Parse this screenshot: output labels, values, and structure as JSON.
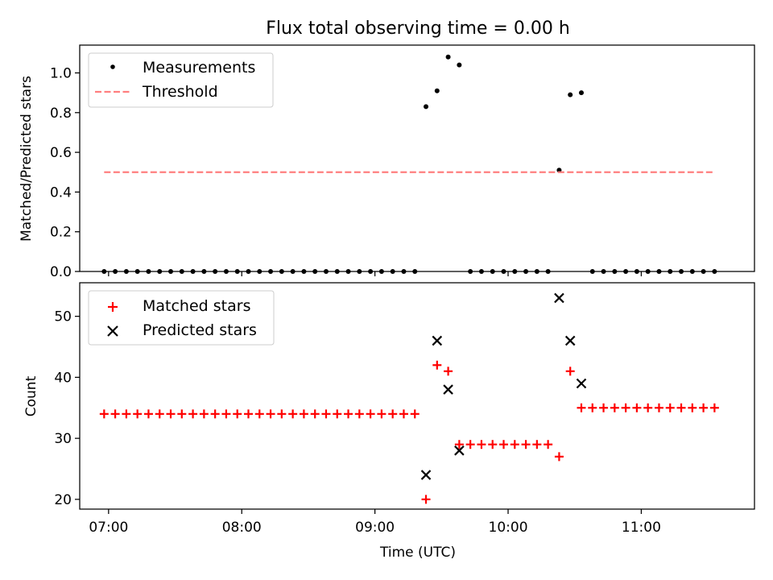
{
  "chart_data": [
    {
      "type": "scatter",
      "title": "Flux total observing time = 0.00 h",
      "xlabel": "",
      "ylabel": "Matched/Predicted stars",
      "xlim": [
        "06:47",
        "11:51"
      ],
      "ylim": [
        0,
        1.14
      ],
      "x_ticks": [
        "07:00",
        "08:00",
        "09:00",
        "10:00",
        "11:00"
      ],
      "y_ticks": [
        "0.0",
        "0.2",
        "0.4",
        "0.6",
        "0.8",
        "1.0"
      ],
      "y_tick_values": [
        0,
        0.2,
        0.4,
        0.6,
        0.8,
        1.0
      ],
      "legend_position": "upper-left",
      "series": [
        {
          "name": "Measurements",
          "marker": "dot",
          "color": "#000000",
          "points": [
            [
              "06:58",
              0
            ],
            [
              "07:03",
              0
            ],
            [
              "07:08",
              0
            ],
            [
              "07:13",
              0
            ],
            [
              "07:18",
              0
            ],
            [
              "07:23",
              0
            ],
            [
              "07:28",
              0
            ],
            [
              "07:33",
              0
            ],
            [
              "07:38",
              0
            ],
            [
              "07:43",
              0
            ],
            [
              "07:48",
              0
            ],
            [
              "07:53",
              0
            ],
            [
              "07:58",
              0
            ],
            [
              "08:03",
              0
            ],
            [
              "08:08",
              0
            ],
            [
              "08:13",
              0
            ],
            [
              "08:18",
              0
            ],
            [
              "08:23",
              0
            ],
            [
              "08:28",
              0
            ],
            [
              "08:33",
              0
            ],
            [
              "08:38",
              0
            ],
            [
              "08:43",
              0
            ],
            [
              "08:48",
              0
            ],
            [
              "08:53",
              0
            ],
            [
              "08:58",
              0
            ],
            [
              "09:03",
              0
            ],
            [
              "09:08",
              0
            ],
            [
              "09:13",
              0
            ],
            [
              "09:18",
              0
            ],
            [
              "09:23",
              0.83
            ],
            [
              "09:28",
              0.91
            ],
            [
              "09:33",
              1.08
            ],
            [
              "09:38",
              1.04
            ],
            [
              "09:43",
              0
            ],
            [
              "09:48",
              0
            ],
            [
              "09:53",
              0
            ],
            [
              "09:58",
              0
            ],
            [
              "10:03",
              0
            ],
            [
              "10:08",
              0
            ],
            [
              "10:13",
              0
            ],
            [
              "10:18",
              0
            ],
            [
              "10:23",
              0.51
            ],
            [
              "10:28",
              0.89
            ],
            [
              "10:33",
              0.9
            ],
            [
              "10:38",
              0
            ],
            [
              "10:43",
              0
            ],
            [
              "10:48",
              0
            ],
            [
              "10:53",
              0
            ],
            [
              "10:58",
              0
            ],
            [
              "11:03",
              0
            ],
            [
              "11:08",
              0
            ],
            [
              "11:13",
              0
            ],
            [
              "11:18",
              0
            ],
            [
              "11:23",
              0
            ],
            [
              "11:28",
              0
            ],
            [
              "11:33",
              0
            ]
          ]
        },
        {
          "name": "Threshold",
          "marker": "dashed-line",
          "color": "#ff7f7f",
          "points": [
            [
              "06:58",
              0.5
            ],
            [
              "11:33",
              0.5
            ]
          ]
        }
      ]
    },
    {
      "type": "scatter",
      "title": "",
      "xlabel": "Time (UTC)",
      "ylabel": "Count",
      "xlim": [
        "06:47",
        "11:51"
      ],
      "ylim": [
        18.4,
        55.5
      ],
      "x_ticks": [
        "07:00",
        "08:00",
        "09:00",
        "10:00",
        "11:00"
      ],
      "y_ticks": [
        "20",
        "30",
        "40",
        "50"
      ],
      "y_tick_values": [
        20,
        30,
        40,
        50
      ],
      "legend_position": "upper-left",
      "series": [
        {
          "name": "Matched stars",
          "marker": "plus",
          "color": "#ff0000",
          "points": [
            [
              "06:58",
              34
            ],
            [
              "07:03",
              34
            ],
            [
              "07:08",
              34
            ],
            [
              "07:13",
              34
            ],
            [
              "07:18",
              34
            ],
            [
              "07:23",
              34
            ],
            [
              "07:28",
              34
            ],
            [
              "07:33",
              34
            ],
            [
              "07:38",
              34
            ],
            [
              "07:43",
              34
            ],
            [
              "07:48",
              34
            ],
            [
              "07:53",
              34
            ],
            [
              "07:58",
              34
            ],
            [
              "08:03",
              34
            ],
            [
              "08:08",
              34
            ],
            [
              "08:13",
              34
            ],
            [
              "08:18",
              34
            ],
            [
              "08:23",
              34
            ],
            [
              "08:28",
              34
            ],
            [
              "08:33",
              34
            ],
            [
              "08:38",
              34
            ],
            [
              "08:43",
              34
            ],
            [
              "08:48",
              34
            ],
            [
              "08:53",
              34
            ],
            [
              "08:58",
              34
            ],
            [
              "09:03",
              34
            ],
            [
              "09:08",
              34
            ],
            [
              "09:13",
              34
            ],
            [
              "09:18",
              34
            ],
            [
              "09:23",
              20
            ],
            [
              "09:28",
              42
            ],
            [
              "09:33",
              41
            ],
            [
              "09:38",
              29
            ],
            [
              "09:43",
              29
            ],
            [
              "09:48",
              29
            ],
            [
              "09:53",
              29
            ],
            [
              "09:58",
              29
            ],
            [
              "10:03",
              29
            ],
            [
              "10:08",
              29
            ],
            [
              "10:13",
              29
            ],
            [
              "10:18",
              29
            ],
            [
              "10:23",
              27
            ],
            [
              "10:28",
              41
            ],
            [
              "10:33",
              35
            ],
            [
              "10:38",
              35
            ],
            [
              "10:43",
              35
            ],
            [
              "10:48",
              35
            ],
            [
              "10:53",
              35
            ],
            [
              "10:58",
              35
            ],
            [
              "11:03",
              35
            ],
            [
              "11:08",
              35
            ],
            [
              "11:13",
              35
            ],
            [
              "11:18",
              35
            ],
            [
              "11:23",
              35
            ],
            [
              "11:28",
              35
            ],
            [
              "11:33",
              35
            ]
          ]
        },
        {
          "name": "Predicted stars",
          "marker": "x",
          "color": "#000000",
          "points": [
            [
              "09:23",
              24
            ],
            [
              "09:28",
              46
            ],
            [
              "09:33",
              38
            ],
            [
              "09:38",
              28
            ],
            [
              "10:23",
              53
            ],
            [
              "10:28",
              46
            ],
            [
              "10:33",
              39
            ]
          ]
        }
      ]
    }
  ]
}
